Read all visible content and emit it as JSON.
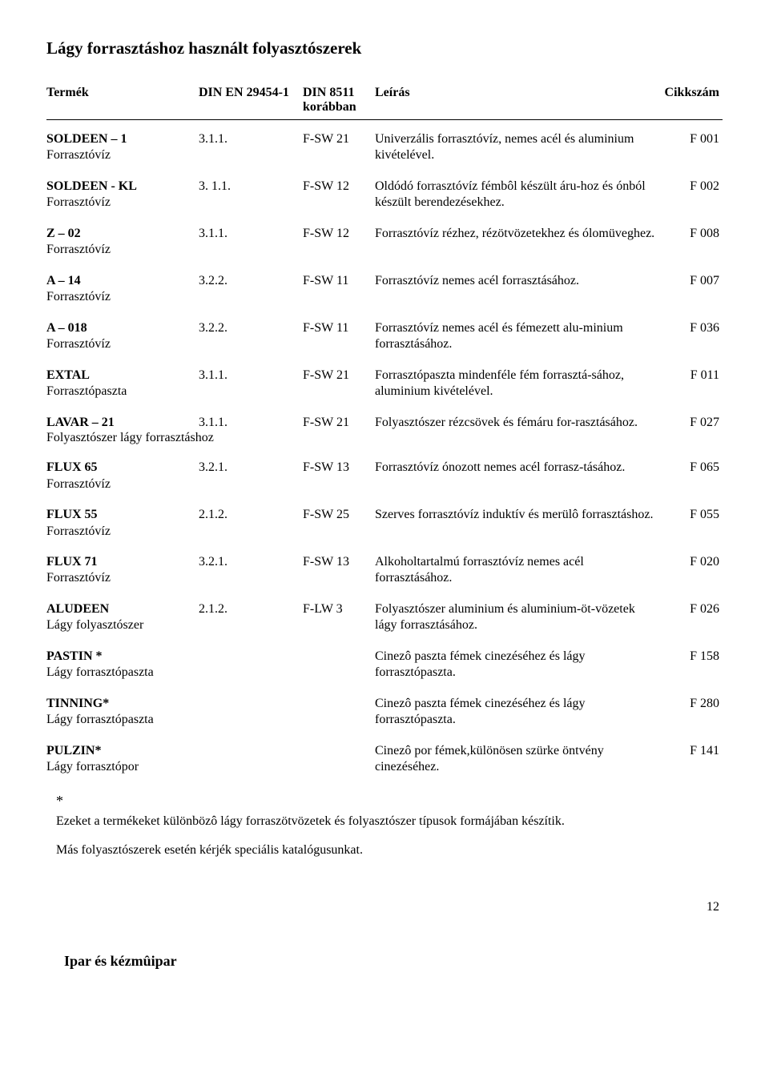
{
  "page_title": "Lágy forrasztáshoz használt folyasztószerek",
  "headers": {
    "termek": "Termék",
    "din1": "DIN EN 29454-1",
    "din2_top": "DIN 8511",
    "din2_bot": "korábban",
    "leiras": "Leírás",
    "cikkszam": "Cikkszám"
  },
  "rows": [
    {
      "name": "SOLDEEN – 1",
      "sub": "Forrasztóvíz",
      "din1": "3.1.1.",
      "din2": "F-SW 21",
      "leiras": "Univerzális forrasztóvíz, nemes acél és aluminium kivételével.",
      "cikk": "F 001"
    },
    {
      "name": "SOLDEEN -  KL",
      "sub": "Forrasztóvíz",
      "din1": "3. 1.1.",
      "din2": "F-SW 12",
      "leiras": "Oldódó forrasztóvíz  fémbôl készült áru-hoz  és ónból készült berendezésekhez.",
      "cikk": "F 002"
    },
    {
      "name": "Z – 02",
      "sub": "Forrasztóvíz",
      "din1": "3.1.1.",
      "din2": "F-SW 12",
      "leiras": "Forrasztóvíz  rézhez, rézötvözetekhez  és ólomüveghez.",
      "cikk": "F 008"
    },
    {
      "name": "A – 14",
      "sub": "Forrasztóvíz",
      "din1": "3.2.2.",
      "din2": "F-SW 11",
      "leiras": "Forrasztóvíz  nemes acél forrasztásához.",
      "cikk": "F 007"
    },
    {
      "name": "A – 018",
      "sub": "Forrasztóvíz",
      "din1": "3.2.2.",
      "din2": "F-SW 11",
      "leiras": "Forrasztóvíz nemes acél és fémezett alu-minium forrasztásához.",
      "cikk": "F 036"
    },
    {
      "name": "EXTAL",
      "sub": "Forrasztópaszta",
      "din1": "3.1.1.",
      "din2": "F-SW 21",
      "leiras": "Forrasztópaszta mindenféle fém forrasztá-sához, aluminium kivételével.",
      "cikk": "F 011"
    },
    {
      "name": "LAVAR – 21",
      "sub": "Folyasztószer lágy forrasztáshoz",
      "din1": "3.1.1.",
      "din2": "F-SW 21",
      "leiras": "Folyasztószer rézcsövek és fémáru for-rasztásához.",
      "cikk": "F 027",
      "wide_sub": true
    },
    {
      "name": "FLUX 65",
      "sub": "Forrasztóvíz",
      "din1": "3.2.1.",
      "din2": "F-SW 13",
      "leiras": "Forrasztóvíz  ónozott  nemes acél forrasz-tásához.",
      "cikk": "F 065"
    },
    {
      "name": "FLUX 55",
      "sub": "Forrasztóvíz",
      "din1": "2.1.2.",
      "din2": "F-SW 25",
      "leiras": "Szerves forrasztóvíz  induktív  és merülô forrasztáshoz.",
      "cikk": "F 055"
    },
    {
      "name": "FLUX 71",
      "sub": "Forrasztóvíz",
      "din1": "3.2.1.",
      "din2": "F-SW 13",
      "leiras": "Alkoholtartalmú forrasztóvíz  nemes acél forrasztásához.",
      "cikk": "F 020"
    },
    {
      "name": "ALUDEEN",
      "sub": "Lágy folyasztószer",
      "din1": "2.1.2.",
      "din2": "F-LW 3",
      "leiras": "Folyasztószer aluminium és aluminium-öt-vözetek  lágy forrasztásához.",
      "cikk": "F 026"
    },
    {
      "name": "PASTIN *",
      "sub": "Lágy forrasztópaszta",
      "din1": "",
      "din2": "",
      "leiras": "Cinezô paszta fémek cinezéséhez  és lágy forrasztópaszta.",
      "cikk": "F 158"
    },
    {
      "name": "TINNING*",
      "sub": "Lágy forrasztópaszta",
      "din1": "",
      "din2": "",
      "leiras": "Cinezô paszta fémek cinezéséhez  és lágy forrasztópaszta.",
      "cikk": "F 280"
    },
    {
      "name": "PULZIN*",
      "sub": "Lágy forrasztópor",
      "din1": "",
      "din2": "",
      "leiras": "Cinezô por fémek,különösen szürke öntvény cinezéséhez.",
      "cikk": "F 141"
    }
  ],
  "footnote_star": "*",
  "footnote_line1": "Ezeket a termékeket  különbözô lágy forraszötvözetek és folyasztószer típusok formájában  készítik.",
  "footnote_line2": "Más folyasztószerek esetén  kérjék speciális katalógusunkat.",
  "page_number": "12",
  "footer_label": "Ipar és kézmûipar"
}
